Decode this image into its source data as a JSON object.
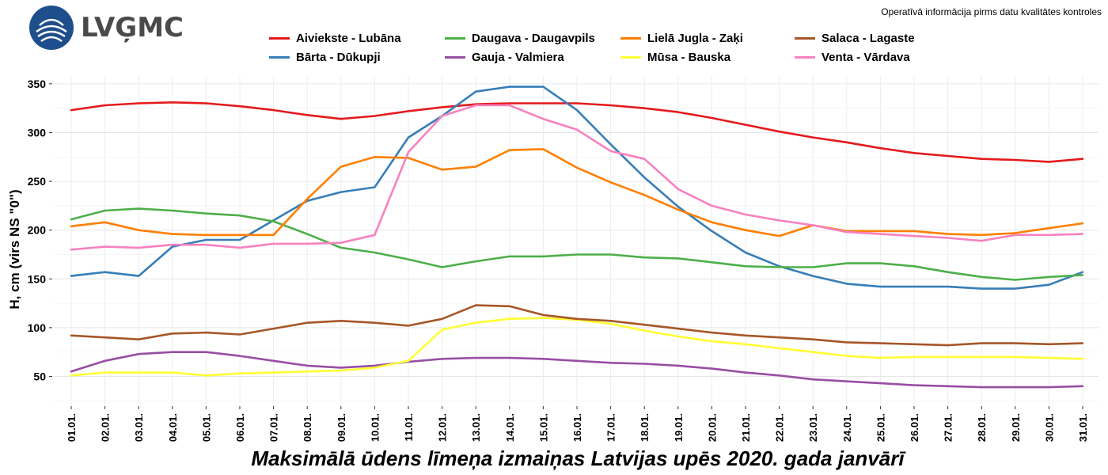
{
  "header": {
    "logo_text": "LVĢMC",
    "notice": "Operatīvā informācija pirms datu kvalitātes kontroles"
  },
  "chart_data": {
    "type": "line",
    "title": "Maksimālā ūdens līmeņa izmaiņas Latvijas upēs 2020. gada janvārī",
    "xlabel": "",
    "ylabel": "H, cm (virs NS \"0\")",
    "ylim": [
      22,
      358
    ],
    "yticks": [
      50,
      100,
      150,
      200,
      250,
      300,
      350
    ],
    "grid": true,
    "legend_position": "top",
    "categories": [
      "01.01.",
      "02.01.",
      "03.01.",
      "04.01.",
      "05.01.",
      "06.01.",
      "07.01.",
      "08.01.",
      "09.01.",
      "10.01.",
      "11.01.",
      "12.01.",
      "13.01.",
      "14.01.",
      "15.01.",
      "16.01.",
      "17.01.",
      "18.01.",
      "19.01.",
      "20.01.",
      "21.01.",
      "22.01.",
      "23.01.",
      "24.01.",
      "25.01.",
      "26.01.",
      "27.01.",
      "28.01.",
      "29.01.",
      "30.01.",
      "31.01."
    ],
    "series": [
      {
        "name": "Aiviekste - Lubāna",
        "color": "#e41a1c",
        "values": [
          323,
          328,
          330,
          331,
          330,
          327,
          323,
          318,
          314,
          317,
          322,
          326,
          329,
          330,
          330,
          330,
          328,
          325,
          321,
          315,
          308,
          301,
          295,
          290,
          284,
          279,
          276,
          273,
          272,
          270,
          273
        ]
      },
      {
        "name": "Bārta - Dūkupji",
        "color": "#377eb8",
        "values": [
          153,
          157,
          153,
          183,
          190,
          190,
          210,
          230,
          239,
          244,
          295,
          317,
          342,
          347,
          347,
          323,
          288,
          254,
          224,
          199,
          177,
          163,
          153,
          145,
          142,
          142,
          142,
          140,
          140,
          144,
          157
        ]
      },
      {
        "name": "Daugava - Daugavpils",
        "color": "#4daf4a",
        "values": [
          211,
          220,
          222,
          220,
          217,
          215,
          209,
          196,
          182,
          177,
          170,
          162,
          168,
          173,
          173,
          175,
          175,
          172,
          171,
          167,
          163,
          162,
          162,
          166,
          166,
          163,
          157,
          152,
          149,
          152,
          154
        ]
      },
      {
        "name": "Gauja - Valmiera",
        "color": "#984ea3",
        "values": [
          55,
          66,
          73,
          75,
          75,
          71,
          66,
          61,
          59,
          61,
          65,
          68,
          69,
          69,
          68,
          66,
          64,
          63,
          61,
          58,
          54,
          51,
          47,
          45,
          43,
          41,
          40,
          39,
          39,
          39,
          40
        ]
      },
      {
        "name": "Lielā Jugla - Zaķi",
        "color": "#ff7f00",
        "values": [
          204,
          208,
          200,
          196,
          195,
          195,
          195,
          232,
          265,
          275,
          274,
          262,
          265,
          282,
          283,
          264,
          249,
          236,
          221,
          208,
          200,
          194,
          205,
          199,
          199,
          199,
          196,
          195,
          197,
          202,
          207
        ]
      },
      {
        "name": "Mūsa - Bauska",
        "color": "#ffff33",
        "values": [
          51,
          54,
          54,
          54,
          51,
          53,
          54,
          55,
          56,
          59,
          66,
          98,
          105,
          109,
          110,
          108,
          104,
          97,
          91,
          86,
          83,
          79,
          75,
          71,
          69,
          70,
          70,
          70,
          70,
          69,
          68
        ]
      },
      {
        "name": "Salaca - Lagaste",
        "color": "#a65628",
        "values": [
          92,
          90,
          88,
          94,
          95,
          93,
          99,
          105,
          107,
          105,
          102,
          109,
          123,
          122,
          113,
          109,
          107,
          103,
          99,
          95,
          92,
          90,
          88,
          85,
          84,
          83,
          82,
          84,
          84,
          83,
          84
        ]
      },
      {
        "name": "Venta - Vārdava",
        "color": "#f781bf",
        "values": [
          180,
          183,
          182,
          185,
          185,
          182,
          186,
          186,
          187,
          195,
          280,
          317,
          328,
          328,
          314,
          303,
          281,
          273,
          242,
          225,
          216,
          210,
          205,
          198,
          196,
          194,
          192,
          189,
          195,
          195,
          196
        ]
      }
    ]
  }
}
